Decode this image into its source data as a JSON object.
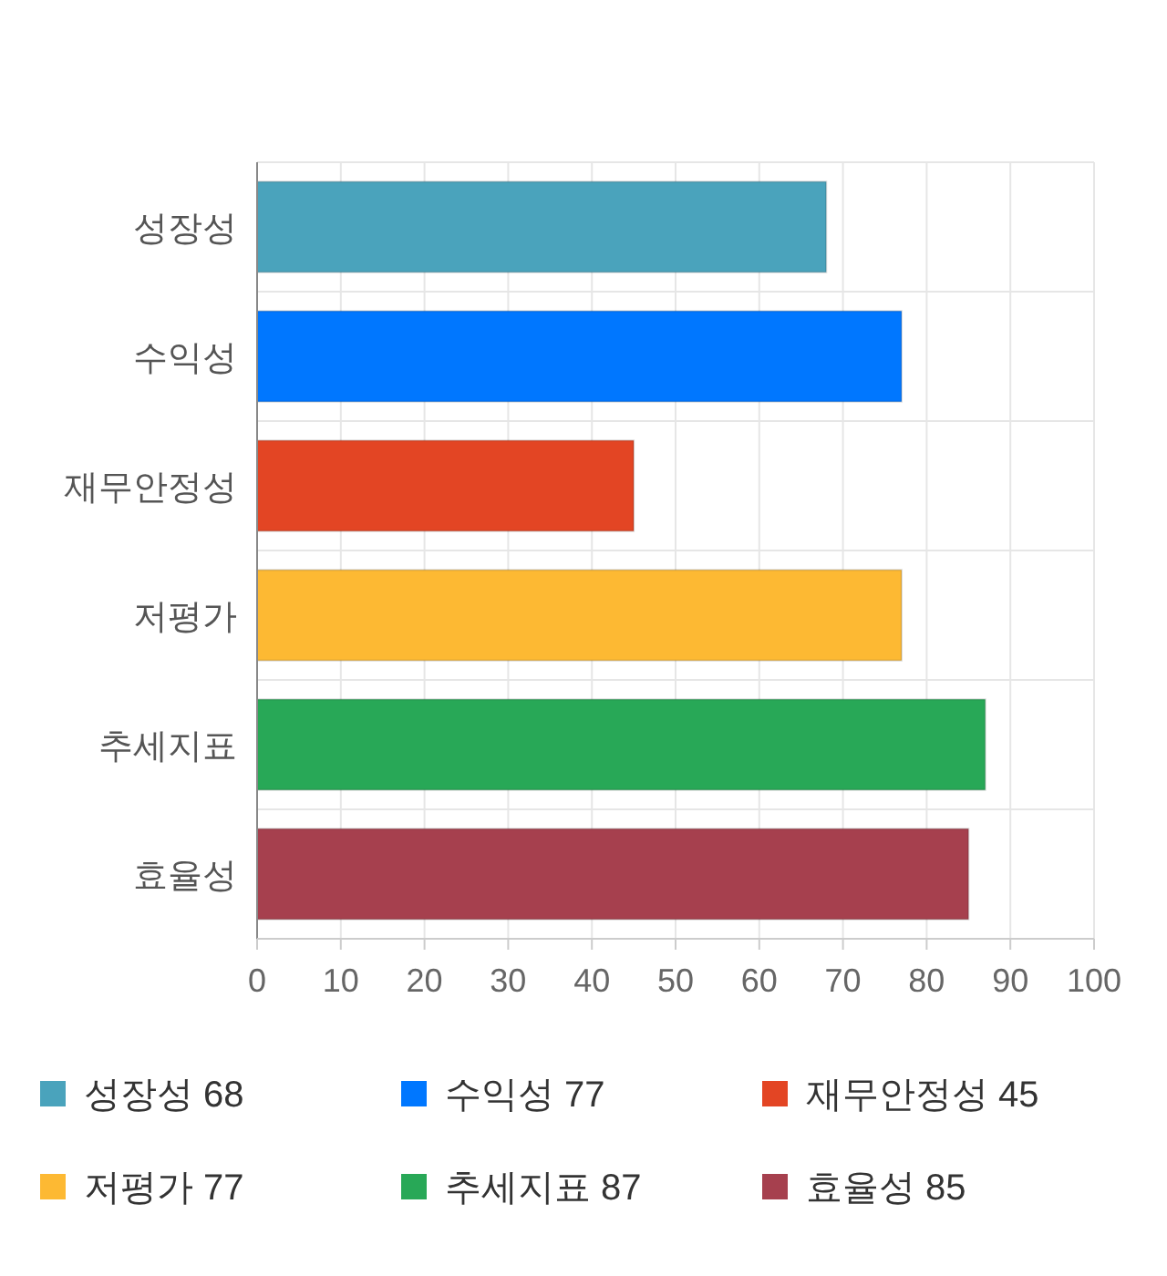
{
  "chart_data": {
    "type": "bar",
    "orientation": "horizontal",
    "categories": [
      "성장성",
      "수익성",
      "재무안정성",
      "저평가",
      "추세지표",
      "효율성"
    ],
    "series": [
      {
        "name": "성장성 68",
        "color": "#4aa3bc",
        "values": [
          68,
          null,
          null,
          null,
          null,
          null
        ]
      },
      {
        "name": "수익성 77",
        "color": "#0077ff",
        "values": [
          null,
          77,
          null,
          null,
          null,
          null
        ]
      },
      {
        "name": "재무안정성 45",
        "color": "#e34524",
        "values": [
          null,
          null,
          45,
          null,
          null,
          null
        ]
      },
      {
        "name": "저평가 77",
        "color": "#fdb933",
        "values": [
          null,
          null,
          null,
          77,
          null,
          null
        ]
      },
      {
        "name": "추세지표 87",
        "color": "#28a857",
        "values": [
          null,
          null,
          null,
          null,
          87,
          null
        ]
      },
      {
        "name": "효율성 85",
        "color": "#a6404e",
        "values": [
          null,
          null,
          null,
          null,
          null,
          85
        ]
      }
    ],
    "xlim": [
      0,
      100
    ],
    "xticks": [
      0,
      10,
      20,
      30,
      40,
      50,
      60,
      70,
      80,
      90,
      100
    ],
    "grid": true,
    "legend": "bottom"
  }
}
